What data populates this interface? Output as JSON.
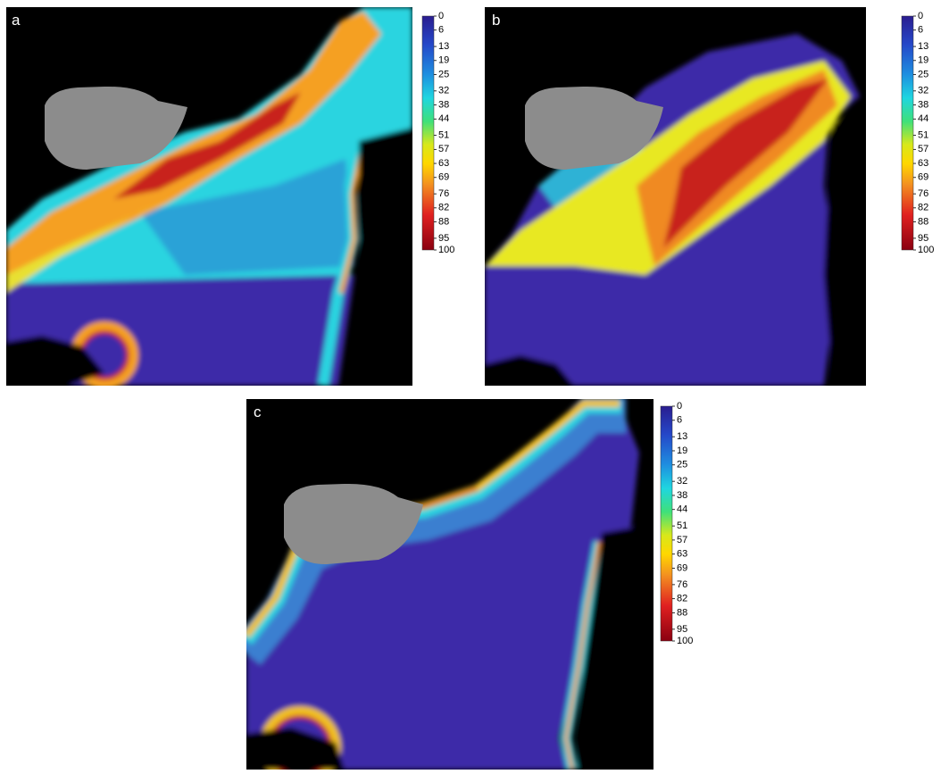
{
  "panels": [
    {
      "label": "a",
      "colorbar": {
        "lim": [
          0,
          100
        ],
        "ticks": [
          0,
          6,
          13,
          19,
          25,
          32,
          38,
          44,
          51,
          57,
          63,
          69,
          76,
          82,
          88,
          95,
          100
        ]
      }
    },
    {
      "label": "b",
      "colorbar": {
        "lim": [
          0,
          100
        ],
        "ticks": [
          0,
          6,
          13,
          19,
          25,
          32,
          38,
          44,
          51,
          57,
          63,
          69,
          76,
          82,
          88,
          95,
          100
        ]
      }
    },
    {
      "label": "c",
      "colorbar": {
        "lim": [
          0,
          100
        ],
        "ticks": [
          0,
          6,
          13,
          19,
          25,
          32,
          38,
          44,
          51,
          57,
          63,
          69,
          76,
          82,
          88,
          95,
          100
        ]
      }
    }
  ]
}
